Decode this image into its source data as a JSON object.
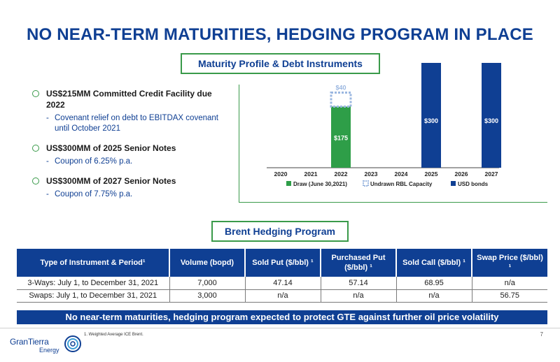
{
  "title": "NO NEAR-TERM MATURITIES, HEDGING PROGRAM IN PLACE",
  "maturity_label": "Maturity Profile & Debt Instruments",
  "brent_label": "Brent Hedging Program",
  "bullets": [
    {
      "text": "US$215MM Committed Credit Facility due 2022",
      "sub": "Covenant relief on debt to EBITDAX covenant until October 2021"
    },
    {
      "text": "US$300MM of 2025 Senior Notes",
      "sub": "Coupon of 6.25% p.a."
    },
    {
      "text": "US$300MM of 2027 Senior Notes",
      "sub": "Coupon of 7.75% p.a."
    }
  ],
  "sub_dash": "-",
  "chart_data": {
    "type": "bar",
    "categories": [
      "2020",
      "2021",
      "2022",
      "2023",
      "2024",
      "2025",
      "2026",
      "2027"
    ],
    "series": [
      {
        "name": "Draw (June 30,2021)",
        "color": "#2e9e48",
        "values": [
          0,
          0,
          175,
          0,
          0,
          0,
          0,
          0
        ],
        "labels": [
          "",
          "",
          "$175",
          "",
          "",
          "",
          "",
          ""
        ]
      },
      {
        "name": "Undrawn RBL Capacity",
        "color": "#9bb7e0",
        "values": [
          0,
          0,
          40,
          0,
          0,
          0,
          0,
          0
        ],
        "labels": [
          "",
          "",
          "$40",
          "",
          "",
          "",
          "",
          ""
        ]
      },
      {
        "name": "USD bonds",
        "color": "#0f3f93",
        "values": [
          0,
          0,
          0,
          0,
          0,
          300,
          0,
          300
        ],
        "labels": [
          "",
          "",
          "",
          "",
          "",
          "$300",
          "",
          "$300"
        ]
      }
    ],
    "stacked": true,
    "ylim": [
      0,
      300
    ],
    "legend": "bottom"
  },
  "table": {
    "headers": [
      "Type of Instrument & Period¹",
      "Volume (bopd)",
      "Sold Put ($/bbl) ¹",
      "Purchased Put ($/bbl) ¹",
      "Sold Call ($/bbl) ¹",
      "Swap Price ($/bbl) ¹"
    ],
    "rows": [
      [
        "3-Ways: July 1, to December 31, 2021",
        "7,000",
        "47.14",
        "57.14",
        "68.95",
        "n/a"
      ],
      [
        "Swaps: July 1, to December 31, 2021",
        "3,000",
        "n/a",
        "n/a",
        "n/a",
        "56.75"
      ]
    ]
  },
  "banner": "No near-term maturities, hedging program expected to protect GTE against further oil price volatility",
  "logo": {
    "name": "GranTierra",
    "sub": "Energy"
  },
  "footnote": "1. Weighted Average ICE Brent.",
  "page_number": "7"
}
